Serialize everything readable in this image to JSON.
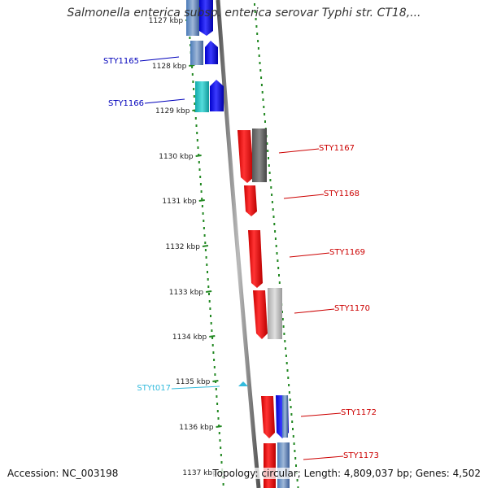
{
  "title": "Salmonella enterica subsp. enterica serovar Typhi str. CT18,...",
  "footer": {
    "accession": "Accession: NC_003198",
    "topology": "Topology: circular; Length: 4,809,037 bp; Genes: 4,502"
  },
  "colors": {
    "forward_gene": "#0000ee",
    "reverse_gene": "#ee0000",
    "trna": "#33bbdd",
    "backbone": "#777777",
    "tick_dots": "#228822"
  },
  "ticks": [
    "1127 kbp",
    "1128 kbp",
    "1129 kbp",
    "1130 kbp",
    "1131 kbp",
    "1132 kbp",
    "1133 kbp",
    "1134 kbp",
    "1135 kbp",
    "1136 kbp",
    "1137 kbp"
  ],
  "left_genes": [
    {
      "name": "STY1165",
      "color": "#0000bb"
    },
    {
      "name": "STY1166",
      "color": "#0000bb"
    },
    {
      "name": "STYt017",
      "color": "#33bbdd"
    }
  ],
  "right_genes": [
    {
      "name": "STY1167",
      "color": "#cc0000"
    },
    {
      "name": "STY1168",
      "color": "#cc0000"
    },
    {
      "name": "STY1169",
      "color": "#cc0000"
    },
    {
      "name": "STY1170",
      "color": "#cc0000"
    },
    {
      "name": "STY1172",
      "color": "#cc0000"
    },
    {
      "name": "STY1173",
      "color": "#cc0000"
    }
  ]
}
